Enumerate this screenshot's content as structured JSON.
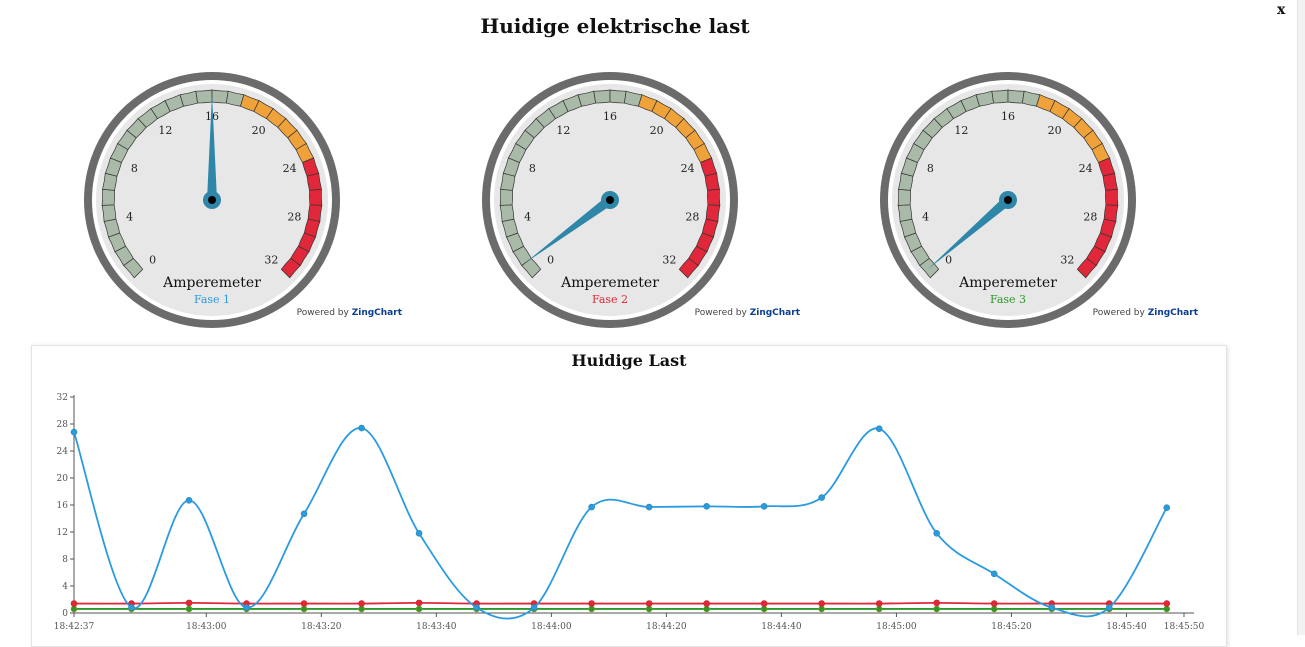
{
  "page": {
    "title": "Huidige elektrische last",
    "close_label": "x"
  },
  "colors": {
    "needle": "#2e86a8",
    "ring_outer": "#6b6b6b",
    "face": "#e7e7e7",
    "band_green": "#a9baa8",
    "band_orange": "#f0a23a",
    "band_red": "#e0283a",
    "fase1": "#2a9be0",
    "fase2": "#e0283a",
    "fase3": "#2a9a2a"
  },
  "gauges": [
    {
      "title": "Amperemeter",
      "subtitle": "Fase 1",
      "subtitle_color": "#2a9be0",
      "value": 16,
      "min": 0,
      "max": 32,
      "tick_labels": [
        "0",
        "4",
        "8",
        "12",
        "16",
        "20",
        "24",
        "28",
        "32"
      ],
      "powered_prefix": "Powered by ",
      "powered_brand": "ZingChart"
    },
    {
      "title": "Amperemeter",
      "subtitle": "Fase 2",
      "subtitle_color": "#e0283a",
      "value": 1,
      "min": 0,
      "max": 32,
      "tick_labels": [
        "0",
        "4",
        "8",
        "12",
        "16",
        "20",
        "24",
        "28",
        "32"
      ],
      "powered_prefix": "Powered by ",
      "powered_brand": "ZingChart"
    },
    {
      "title": "Amperemeter",
      "subtitle": "Fase 3",
      "subtitle_color": "#2a9a2a",
      "value": 0.5,
      "min": 0,
      "max": 32,
      "tick_labels": [
        "0",
        "4",
        "8",
        "12",
        "16",
        "20",
        "24",
        "28",
        "32"
      ],
      "powered_prefix": "Powered by ",
      "powered_brand": "ZingChart"
    }
  ],
  "chart_data": {
    "type": "line",
    "title": "Huidige Last",
    "ylim": [
      0,
      32
    ],
    "y_ticks": [
      "0",
      "4",
      "8",
      "12",
      "16",
      "20",
      "24",
      "28",
      "32"
    ],
    "x_tick_labels": [
      "18:42:37",
      "18:43:00",
      "18:43:20",
      "18:43:40",
      "18:44:00",
      "18:44:20",
      "18:44:40",
      "18:45:00",
      "18:45:20",
      "18:45:40",
      "18:45:50"
    ],
    "x_tick_positions": [
      0,
      23,
      43,
      63,
      83,
      103,
      123,
      143,
      163,
      183,
      193
    ],
    "x": [
      0,
      10,
      20,
      30,
      40,
      50,
      60,
      70,
      80,
      90,
      100,
      110,
      120,
      130,
      140,
      150,
      160,
      170,
      180,
      190
    ],
    "grid": false,
    "series": [
      {
        "color": "#2a9be0",
        "values": [
          26.8,
          0.8,
          16.7,
          0.8,
          14.7,
          27.4,
          11.8,
          0.8,
          0.8,
          15.7,
          15.7,
          15.8,
          15.8,
          17.1,
          27.3,
          11.8,
          5.8,
          0.8,
          0.8,
          15.6
        ]
      },
      {
        "color": "#e0283a",
        "values": [
          1.4,
          1.4,
          1.5,
          1.4,
          1.4,
          1.4,
          1.5,
          1.4,
          1.4,
          1.4,
          1.4,
          1.4,
          1.4,
          1.4,
          1.4,
          1.5,
          1.4,
          1.4,
          1.4,
          1.4
        ]
      },
      {
        "color": "#2a9a2a",
        "values": [
          0.6,
          0.6,
          0.6,
          0.6,
          0.6,
          0.6,
          0.6,
          0.6,
          0.6,
          0.6,
          0.6,
          0.6,
          0.6,
          0.6,
          0.6,
          0.6,
          0.6,
          0.6,
          0.6,
          0.6
        ]
      }
    ]
  }
}
